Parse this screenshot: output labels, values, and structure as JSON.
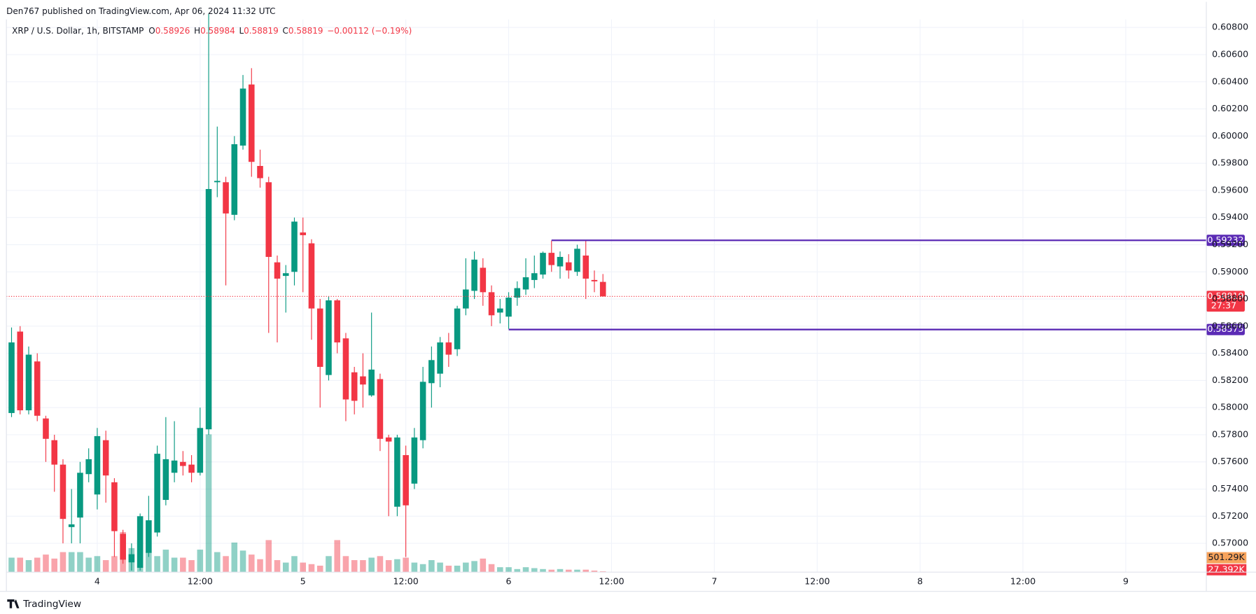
{
  "chart_data": {
    "type": "candlestick",
    "published": "Den767 published on TradingView.com, Apr 06, 2024 11:32 UTC",
    "symbol": "XRP / U.S. Dollar, 1h, BITSTAMP",
    "ohlc_header": [
      {
        "key": "O",
        "value": "0.58926"
      },
      {
        "key": "H",
        "value": "0.58984"
      },
      {
        "key": "L",
        "value": "0.58819"
      },
      {
        "key": "C",
        "value": "0.58819"
      }
    ],
    "change": "−0.00112 (−0.19%)",
    "brand": "TradingView",
    "up_color": "#089981",
    "down_color": "#f23645",
    "x": [
      -10,
      -9,
      -8,
      -7,
      -6,
      -5,
      -4,
      -3,
      -2,
      -1,
      0,
      1,
      2,
      3,
      4,
      5,
      6,
      7,
      8,
      9,
      10,
      11,
      12,
      13,
      14,
      15,
      16,
      17,
      18,
      19,
      20,
      21,
      22,
      23,
      24,
      25,
      26,
      27,
      28,
      29,
      30,
      31,
      32,
      33,
      34,
      35,
      36,
      37,
      38,
      39,
      40,
      41,
      42,
      43,
      44,
      45,
      46,
      47,
      48,
      49,
      50,
      51,
      52,
      53,
      54,
      55,
      56,
      57,
      58,
      59
    ],
    "open": [
      0.5796,
      0.5856,
      0.5798,
      0.5834,
      0.5792,
      0.5776,
      0.5758,
      0.5712,
      0.5719,
      0.5751,
      0.5736,
      0.5776,
      0.5745,
      0.5707,
      0.5686,
      0.5682,
      0.5693,
      0.5708,
      0.5732,
      0.5752,
      0.576,
      0.5758,
      0.5752,
      0.5784,
      0.5966,
      0.5966,
      0.5942,
      0.5993,
      0.6038,
      0.5978,
      0.5966,
      0.5907,
      0.5897,
      0.59,
      0.5929,
      0.5921,
      0.5873,
      0.5824,
      0.5879,
      0.5851,
      0.5826,
      0.5823,
      0.5809,
      0.5821,
      0.5778,
      0.5727,
      0.5765,
      0.5744,
      0.5776,
      0.5818,
      0.5825,
      0.5848,
      0.5843,
      0.5873,
      0.5886,
      0.5903,
      0.5885,
      0.587,
      0.5867,
      0.5881,
      0.5887,
      0.5894,
      0.5898,
      0.5914,
      0.5904,
      0.5907,
      0.59,
      0.5912,
      0.5894,
      0.58926
    ],
    "high": [
      0.5859,
      0.586,
      0.5845,
      0.584,
      0.5794,
      0.578,
      0.5762,
      0.574,
      0.576,
      0.577,
      0.5785,
      0.5783,
      0.5748,
      0.571,
      0.57,
      0.5722,
      0.5735,
      0.5772,
      0.5793,
      0.579,
      0.5768,
      0.5765,
      0.58,
      0.609,
      0.6007,
      0.597,
      0.6,
      0.6045,
      0.605,
      0.599,
      0.597,
      0.5912,
      0.5905,
      0.594,
      0.594,
      0.5924,
      0.588,
      0.5882,
      0.588,
      0.5855,
      0.583,
      0.584,
      0.587,
      0.5825,
      0.578,
      0.578,
      0.5772,
      0.5785,
      0.583,
      0.5845,
      0.5852,
      0.5855,
      0.5875,
      0.591,
      0.5915,
      0.591,
      0.589,
      0.588,
      0.5885,
      0.5893,
      0.591,
      0.5912,
      0.5915,
      0.5923,
      0.5915,
      0.5913,
      0.592,
      0.5923,
      0.5901,
      0.58984
    ],
    "low": [
      0.5793,
      0.5795,
      0.5795,
      0.579,
      0.576,
      0.5738,
      0.57,
      0.57,
      0.57,
      0.5745,
      0.5725,
      0.573,
      0.569,
      0.5685,
      0.568,
      0.568,
      0.569,
      0.5705,
      0.5728,
      0.5745,
      0.575,
      0.5745,
      0.575,
      0.578,
      0.5955,
      0.589,
      0.5938,
      0.599,
      0.597,
      0.5962,
      0.5855,
      0.5848,
      0.587,
      0.589,
      0.5885,
      0.585,
      0.58,
      0.582,
      0.584,
      0.579,
      0.5795,
      0.58,
      0.5808,
      0.5768,
      0.572,
      0.572,
      0.569,
      0.574,
      0.577,
      0.58,
      0.5815,
      0.583,
      0.5838,
      0.5868,
      0.588,
      0.5875,
      0.586,
      0.5862,
      0.5858,
      0.5875,
      0.5883,
      0.5888,
      0.5895,
      0.59,
      0.5895,
      0.5895,
      0.5897,
      0.588,
      0.5885,
      0.58819
    ],
    "close": [
      0.5848,
      0.5798,
      0.5839,
      0.5794,
      0.5777,
      0.5758,
      0.5718,
      0.5714,
      0.5752,
      0.5762,
      0.5779,
      0.575,
      0.5709,
      0.5688,
      0.5692,
      0.572,
      0.5717,
      0.5766,
      0.5762,
      0.5761,
      0.5757,
      0.5752,
      0.5785,
      0.5961,
      0.5967,
      0.5943,
      0.5994,
      0.6035,
      0.5981,
      0.5969,
      0.5911,
      0.5895,
      0.5899,
      0.5937,
      0.5927,
      0.5873,
      0.583,
      0.5879,
      0.5848,
      0.5806,
      0.5805,
      0.5817,
      0.5828,
      0.5777,
      0.5775,
      0.5778,
      0.5728,
      0.5778,
      0.5819,
      0.5835,
      0.5848,
      0.5839,
      0.5873,
      0.5887,
      0.5909,
      0.5885,
      0.5868,
      0.5873,
      0.5881,
      0.5888,
      0.5896,
      0.5899,
      0.5914,
      0.5905,
      0.5911,
      0.5901,
      0.5917,
      0.5895,
      0.5893,
      0.58819
    ],
    "volume": [
      470,
      470,
      390,
      470,
      570,
      440,
      650,
      650,
      650,
      470,
      520,
      390,
      520,
      1300,
      780,
      1040,
      650,
      520,
      730,
      470,
      470,
      390,
      730,
      4470,
      650,
      520,
      960,
      700,
      570,
      420,
      1040,
      390,
      310,
      520,
      310,
      260,
      210,
      520,
      1040,
      520,
      390,
      390,
      470,
      520,
      390,
      420,
      470,
      310,
      260,
      390,
      310,
      210,
      210,
      310,
      360,
      440,
      260,
      160,
      160,
      100,
      160,
      130,
      100,
      80,
      100,
      80,
      80,
      80,
      50,
      27.392
    ],
    "volume_lim": [
      0,
      18500
    ],
    "volume_ma_label": "501.29K",
    "last_volume_label": "27.392K",
    "xlim": [
      -10.6,
      129.4
    ],
    "xticks": [
      {
        "value": 0,
        "label": "4"
      },
      {
        "value": 12,
        "label": "12:00"
      },
      {
        "value": 24,
        "label": "5"
      },
      {
        "value": 36,
        "label": "12:00"
      },
      {
        "value": 48,
        "label": "6"
      },
      {
        "value": 60,
        "label": "12:00"
      },
      {
        "value": 72,
        "label": "7"
      },
      {
        "value": 84,
        "label": "12:00"
      },
      {
        "value": 96,
        "label": "8"
      },
      {
        "value": 108,
        "label": "12:00"
      },
      {
        "value": 120,
        "label": "9"
      }
    ],
    "ylim": [
      0.56788,
      0.60989
    ],
    "yticks": [
      {
        "value": 0.608,
        "label": "0.60800"
      },
      {
        "value": 0.606,
        "label": "0.60600"
      },
      {
        "value": 0.604,
        "label": "0.60400"
      },
      {
        "value": 0.602,
        "label": "0.60200"
      },
      {
        "value": 0.6,
        "label": "0.60000"
      },
      {
        "value": 0.598,
        "label": "0.59800"
      },
      {
        "value": 0.596,
        "label": "0.59600"
      },
      {
        "value": 0.594,
        "label": "0.59400"
      },
      {
        "value": 0.592,
        "label": "0.59200"
      },
      {
        "value": 0.59,
        "label": "0.59000"
      },
      {
        "value": 0.588,
        "label": "0.58800"
      },
      {
        "value": 0.586,
        "label": "0.58600"
      },
      {
        "value": 0.584,
        "label": "0.58400"
      },
      {
        "value": 0.582,
        "label": "0.58200"
      },
      {
        "value": 0.58,
        "label": "0.58000"
      },
      {
        "value": 0.578,
        "label": "0.57800"
      },
      {
        "value": 0.576,
        "label": "0.57600"
      },
      {
        "value": 0.574,
        "label": "0.57400"
      },
      {
        "value": 0.572,
        "label": "0.57200"
      },
      {
        "value": 0.57,
        "label": "0.57000"
      }
    ],
    "grid": true,
    "hlines": [
      {
        "value": 0.59232,
        "label": "0.59232",
        "start": 53,
        "color": "#5b2bb5"
      },
      {
        "value": 0.58575,
        "label": "0.58575",
        "start": 48,
        "color": "#5b2bb5"
      }
    ],
    "last_price": {
      "value": 0.58819,
      "label": "0.58819",
      "countdown": "27:37"
    }
  }
}
